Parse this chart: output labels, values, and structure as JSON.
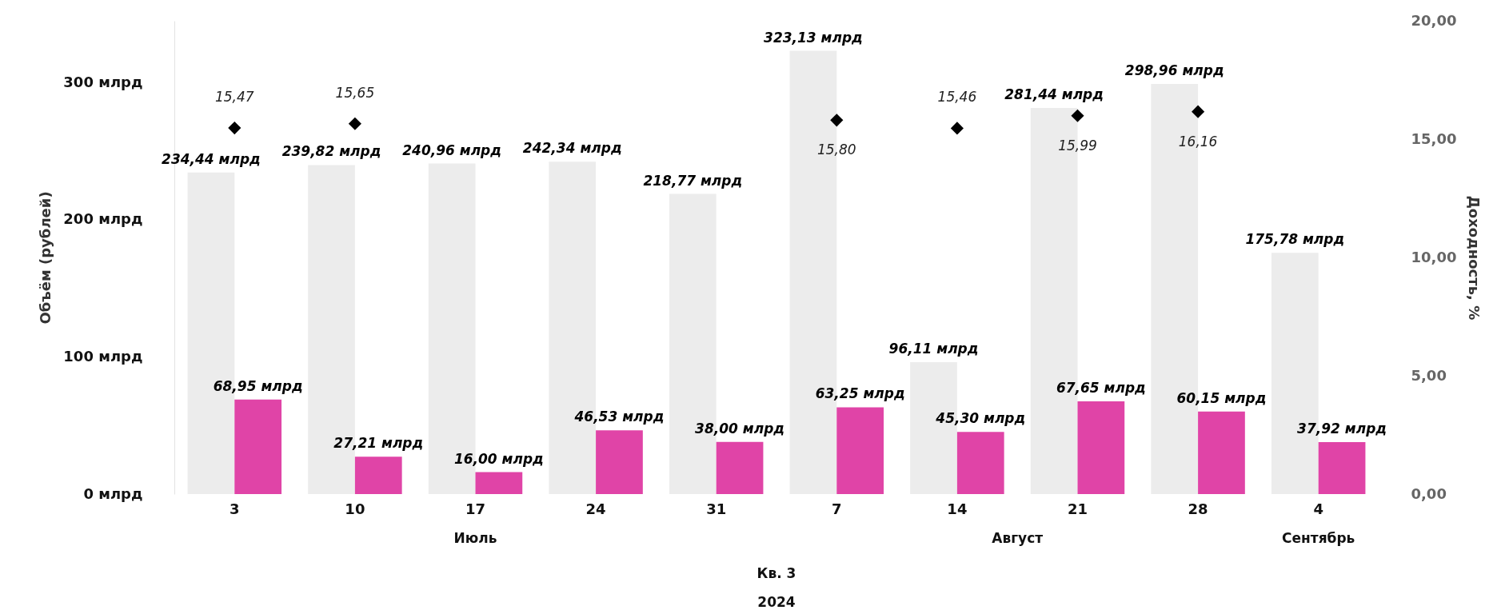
{
  "chart_data": {
    "type": "bar",
    "categories": [
      "3",
      "10",
      "17",
      "24",
      "31",
      "7",
      "14",
      "21",
      "28",
      "4"
    ],
    "series": [
      {
        "color": "#ececec",
        "values": [
          234.44,
          239.82,
          240.96,
          242.34,
          218.77,
          323.13,
          96.11,
          281.44,
          298.96,
          175.78
        ],
        "value_labels": [
          "234,44 млрд",
          "239,82 млрд",
          "240,96 млрд",
          "242,34 млрд",
          "218,77 млрд",
          "323,13 млрд",
          "96,11 млрд",
          "281,44 млрд",
          "298,96 млрд",
          "175,78 млрд"
        ]
      },
      {
        "color": "#e044a7",
        "values": [
          68.95,
          27.21,
          16.0,
          46.53,
          38.0,
          63.25,
          45.3,
          67.65,
          60.15,
          37.92
        ],
        "value_labels": [
          "68,95 млрд",
          "27,21 млрд",
          "16,00 млрд",
          "46,53 млрд",
          "38,00 млрд",
          "63,25 млрд",
          "45,30 млрд",
          "67,65 млрд",
          "60,15 млрд",
          "37,92 млрд"
        ]
      },
      {
        "type": "scatter",
        "axis": "y2",
        "marker": "diamond",
        "color": "#000000",
        "values": [
          15.47,
          15.65,
          null,
          null,
          null,
          15.8,
          15.46,
          15.99,
          16.16,
          null
        ],
        "value_labels": [
          "15,47",
          "15,65",
          null,
          null,
          null,
          "15,80",
          "15,46",
          "15,99",
          "16,16",
          null
        ]
      }
    ],
    "ylabel": "Объём (рублей)",
    "y2label": "Доходность, %",
    "ylim": [
      0,
      345
    ],
    "yticks": [
      {
        "value": 0,
        "label": "0 млрд"
      },
      {
        "value": 100,
        "label": "100 млрд"
      },
      {
        "value": 200,
        "label": "200 млрд"
      },
      {
        "value": 300,
        "label": "300 млрд"
      }
    ],
    "y2lim": [
      0,
      20
    ],
    "y2ticks": [
      {
        "value": 0,
        "label": "0,00"
      },
      {
        "value": 5,
        "label": "5,00"
      },
      {
        "value": 10,
        "label": "10,00"
      },
      {
        "value": 15,
        "label": "15,00"
      },
      {
        "value": 20,
        "label": "20,00"
      }
    ],
    "annotations": [
      "Июль",
      "Август",
      "Сентябрь",
      "Кв. 3",
      "2024"
    ]
  }
}
